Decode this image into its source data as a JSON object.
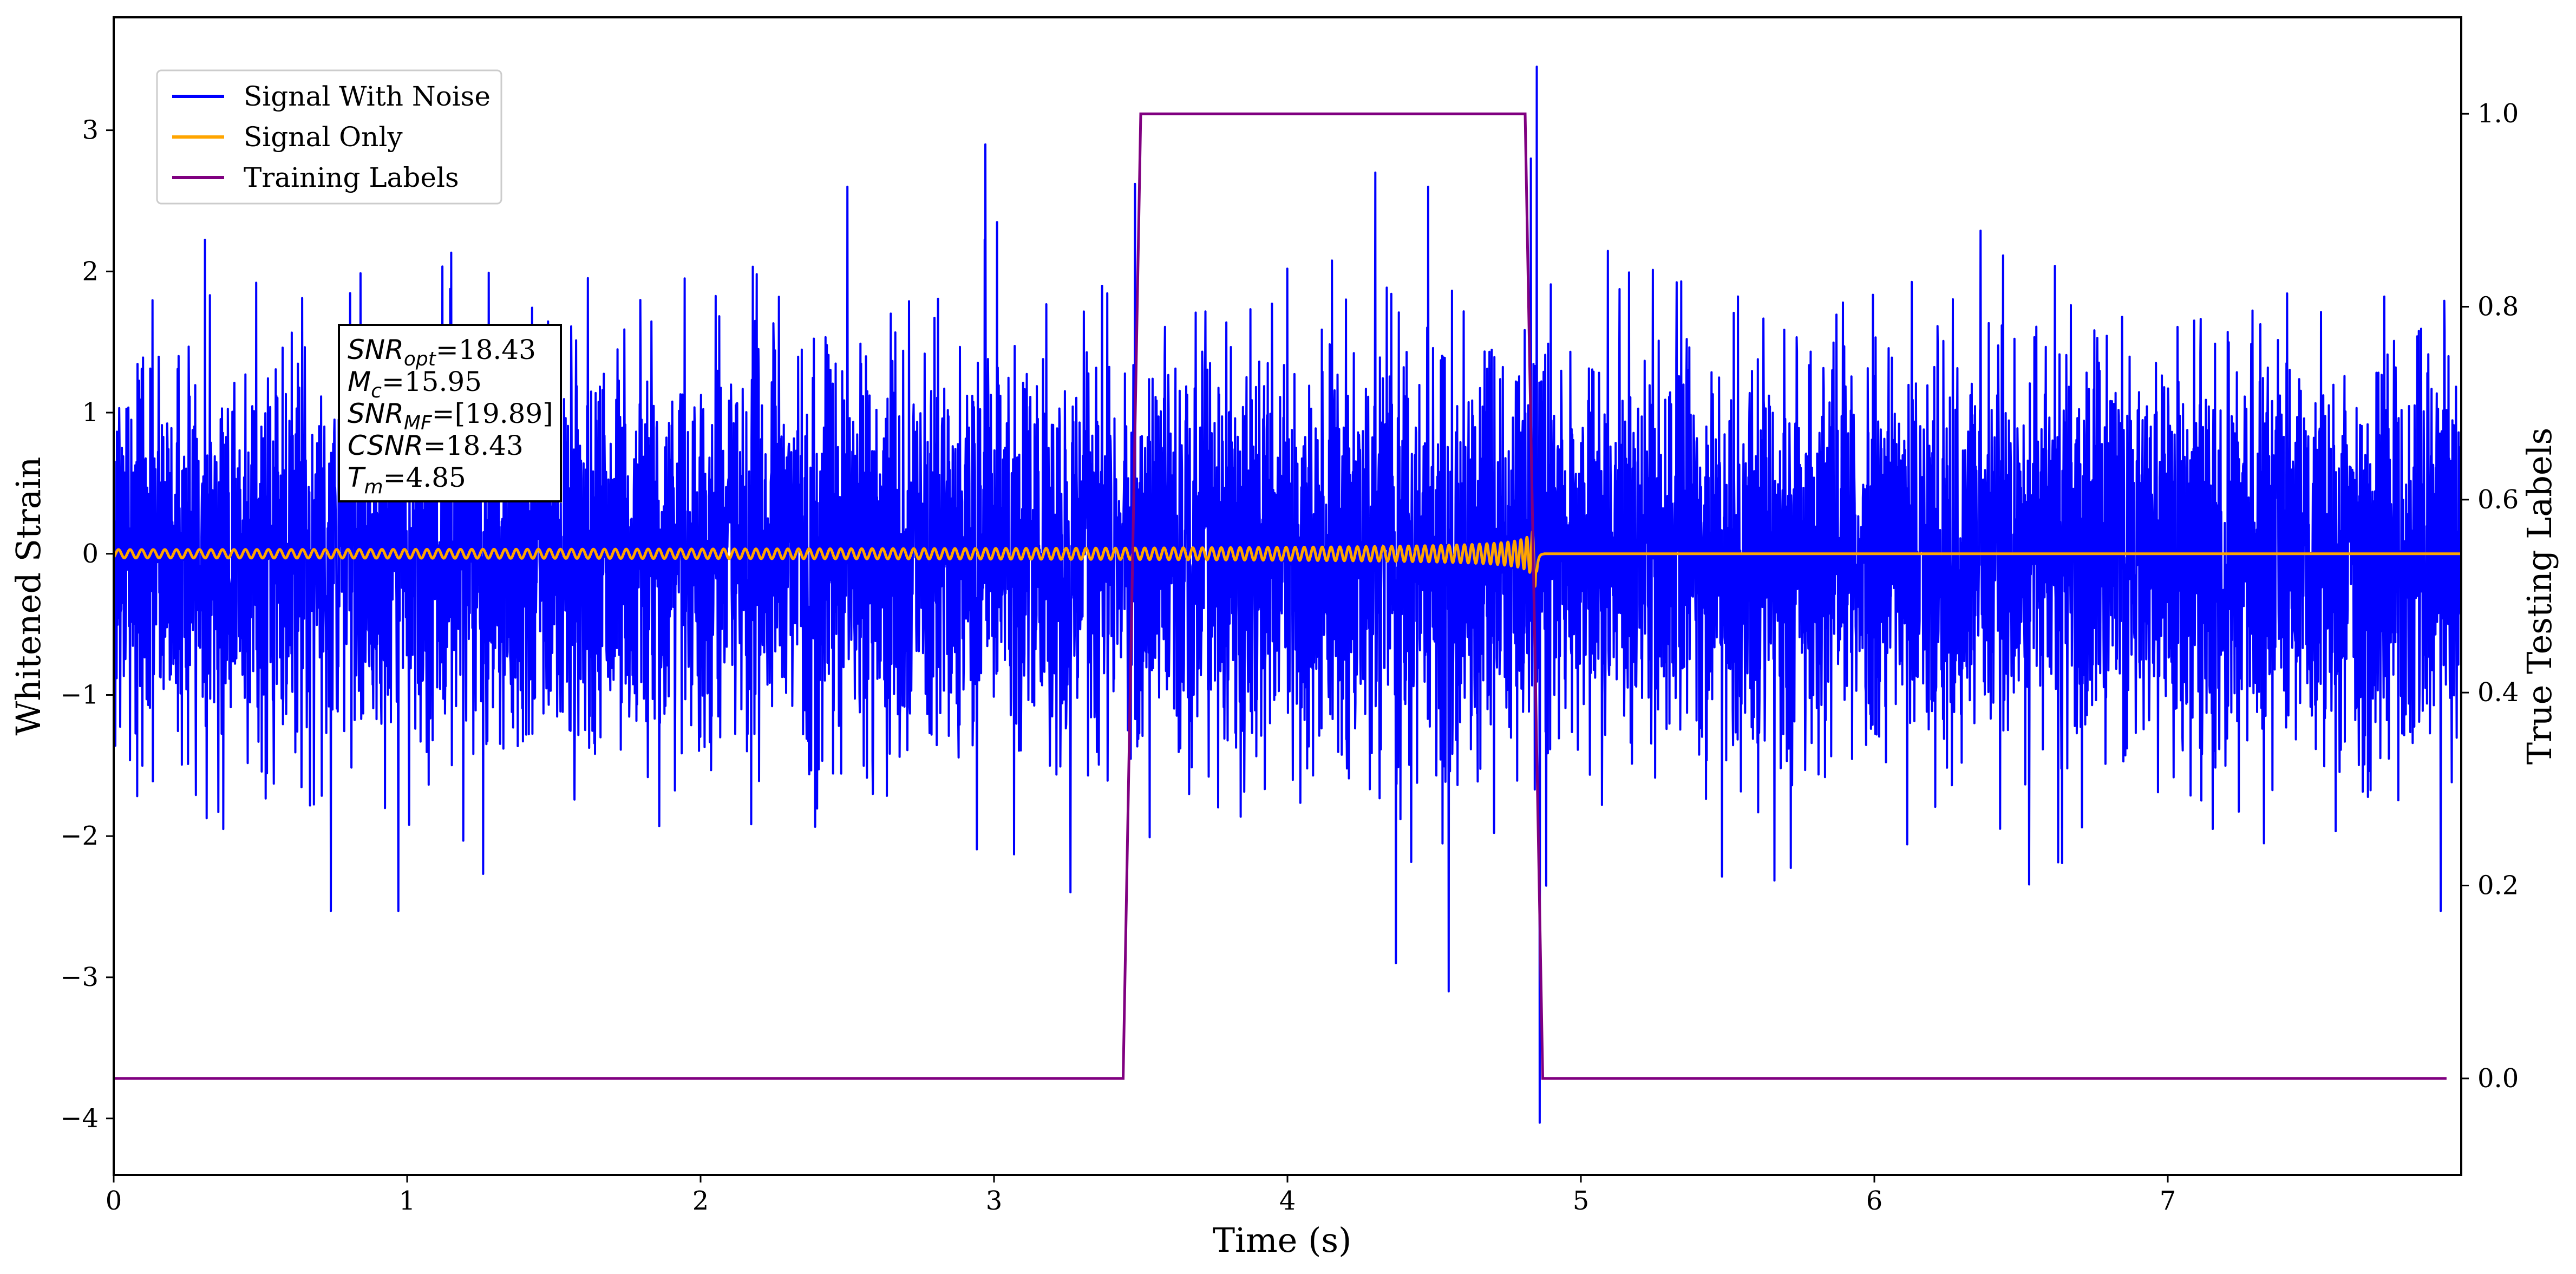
{
  "chart_data": {
    "type": "line",
    "xlabel": "Time (s)",
    "ylabel": "Whitened Strain",
    "y2label": "True Testing Labels",
    "xlim": [
      0,
      8.0
    ],
    "ylim": [
      -4.4,
      3.8
    ],
    "y2lim": [
      -0.1,
      1.1
    ],
    "xticks": [
      0,
      1,
      2,
      3,
      4,
      5,
      6,
      7
    ],
    "yticks": [
      -4,
      -3,
      -2,
      -1,
      0,
      1,
      2,
      3
    ],
    "y2ticks": [
      0.0,
      0.2,
      0.4,
      0.6,
      0.8,
      1.0
    ],
    "xtick_labels": [
      "0",
      "1",
      "2",
      "3",
      "4",
      "5",
      "6",
      "7"
    ],
    "ytick_labels": [
      "−4",
      "−3",
      "−2",
      "−1",
      "0",
      "1",
      "2",
      "3"
    ],
    "y2tick_labels": [
      "0.0",
      "0.2",
      "0.4",
      "0.6",
      "0.8",
      "1.0"
    ],
    "grid": false,
    "legend_position": "top-left",
    "series": [
      {
        "name": "Signal With Noise",
        "color": "#0000ff",
        "axis": "left",
        "noise_std": 0.7,
        "peaks": [
          [
            4.85,
            3.45
          ],
          [
            4.86,
            -4.03
          ],
          [
            4.83,
            2.8
          ],
          [
            2.97,
            2.9
          ],
          [
            4.3,
            2.7
          ],
          [
            2.5,
            2.6
          ],
          [
            4.48,
            2.6
          ],
          [
            0.97,
            -2.53
          ],
          [
            4.55,
            -3.1
          ],
          [
            4.37,
            -2.9
          ],
          [
            7.93,
            -2.53
          ],
          [
            0.74,
            -2.53
          ],
          [
            3.48,
            2.62
          ]
        ]
      },
      {
        "name": "Signal Only",
        "color": "#ffa500",
        "axis": "left",
        "merger_time": 4.85,
        "t_start": 0,
        "t_end": 8.0
      },
      {
        "name": "Training Labels",
        "color": "#800080",
        "axis": "right",
        "points": [
          [
            0,
            0
          ],
          [
            3.44,
            0
          ],
          [
            3.5,
            1.0
          ],
          [
            4.81,
            1.0
          ],
          [
            4.87,
            0
          ],
          [
            7.95,
            0
          ]
        ]
      }
    ],
    "annotation": [
      {
        "var": "SNR",
        "sub": "opt",
        "value": "=18.43"
      },
      {
        "var": "M",
        "sub": "c",
        "value": "=15.95"
      },
      {
        "var": "SNR",
        "sub": "MF",
        "value": "=[19.89]"
      },
      {
        "var": "CSNR",
        "sub": "",
        "value": "=18.43"
      },
      {
        "var": "T",
        "sub": "m",
        "value": "=4.85"
      }
    ]
  }
}
